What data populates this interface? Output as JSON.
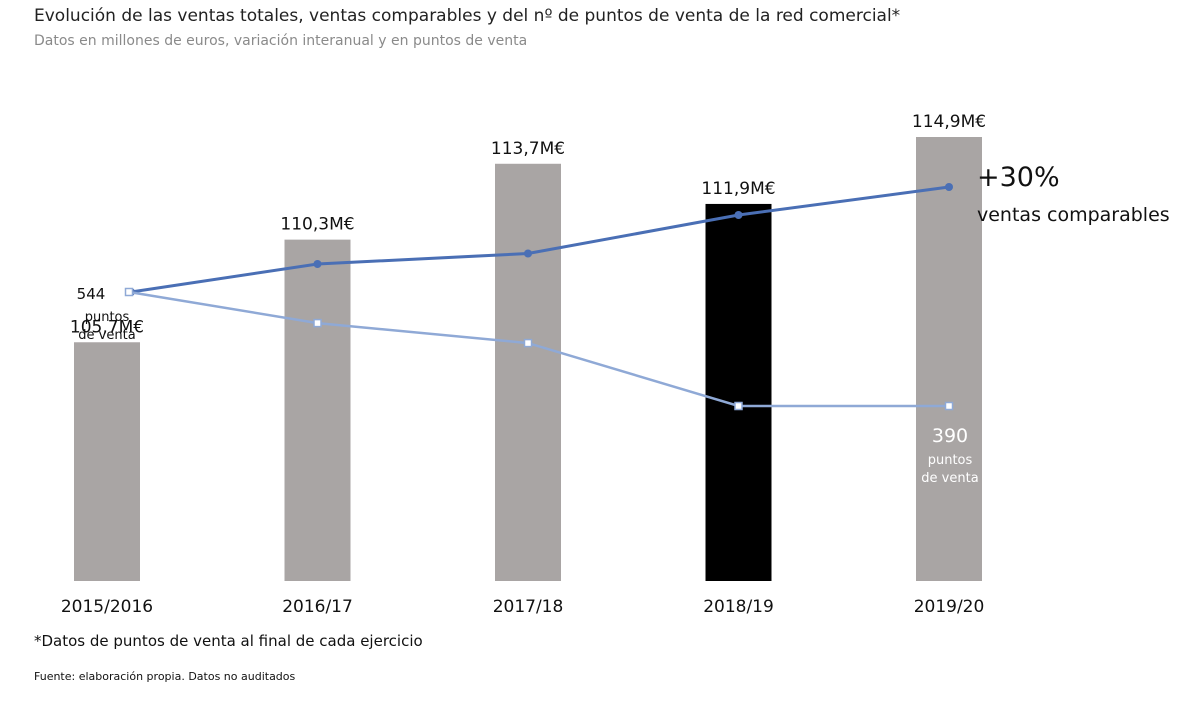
{
  "header": {
    "title": "Evolución de las ventas totales, ventas comparables y del nº de puntos de venta de la red comercial*",
    "subtitle": "Datos en millones de euros, variación interanual y en puntos de venta"
  },
  "footer": {
    "note": "*Datos de puntos de venta al final de cada ejercicio",
    "source": "Fuente: elaboración propia. Datos no auditados"
  },
  "colors": {
    "bar": "#a9a5a4",
    "bar_highlight": "#000000",
    "comparable_line": "#4a6fb5",
    "stores_line": "#8fa9d6"
  },
  "chart_data": {
    "type": "bar",
    "categories": [
      "2015/2016",
      "2016/17",
      "2017/18",
      "2018/19",
      "2019/20"
    ],
    "series": [
      {
        "type": "bar",
        "values": [
          105.7,
          110.3,
          113.7,
          111.9,
          114.9
        ],
        "labels": [
          "105,7M€",
          "110,3M€",
          "113,7M€",
          "111,9M€",
          "114,9M€"
        ],
        "highlight_index": 3
      },
      {
        "type": "line",
        "values": [
          100,
          108,
          111,
          122,
          130
        ]
      },
      {
        "type": "line",
        "values": [
          544,
          502,
          475,
          390,
          390
        ]
      }
    ],
    "annotations": {
      "comparable_big": "+30%",
      "comparable_small": "ventas comparables",
      "stores_start_value": "544",
      "stores_start_line1": "puntos",
      "stores_start_line2": "de venta",
      "stores_end_value": "390",
      "stores_end_line1": "puntos",
      "stores_end_line2": "de venta"
    },
    "grid": false,
    "legend": "none"
  }
}
